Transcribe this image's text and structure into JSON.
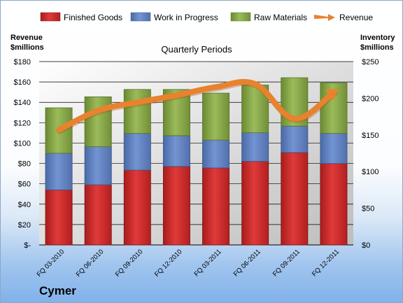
{
  "company": "Cymer",
  "legend": {
    "finished_goods": "Finished Goods",
    "wip": "Work in Progress",
    "raw": "Raw Materials",
    "revenue": "Revenue"
  },
  "colors": {
    "finished_goods": "#d42a2a",
    "wip": "#5b7dc0",
    "raw": "#7fa240",
    "revenue": "#e8822e"
  },
  "chart_data": {
    "type": "bar",
    "stacked": true,
    "title": "Quarterly Periods",
    "ylabel_left": "Revenue\n$millions",
    "ylabel_right": "Inventory\n$millions",
    "categories": [
      "FQ 03-2010",
      "FQ 06-2010",
      "FQ 09-2010",
      "FQ 12-2010",
      "FQ 03-2011",
      "FQ 06-2011",
      "FQ 09-2011",
      "FQ 12-2011"
    ],
    "left_axis": {
      "min": 0,
      "max": 180,
      "step": 20,
      "ticks": [
        "$-",
        "$20",
        "$40",
        "$60",
        "$80",
        "$100",
        "$120",
        "$140",
        "$160",
        "$180"
      ]
    },
    "right_axis": {
      "min": 0,
      "max": 250,
      "step": 50,
      "ticks": [
        "$0",
        "$50",
        "$100",
        "$150",
        "$200",
        "$250"
      ]
    },
    "series": [
      {
        "name": "Finished Goods",
        "axis": "right",
        "values": [
          75,
          82,
          102,
          107,
          105,
          114,
          126,
          111
        ]
      },
      {
        "name": "Work in Progress",
        "axis": "right",
        "values": [
          50,
          52,
          50,
          42,
          38,
          39,
          36,
          41
        ]
      },
      {
        "name": "Raw Materials",
        "axis": "right",
        "values": [
          62,
          68,
          60,
          63,
          64,
          65,
          66,
          69
        ]
      },
      {
        "name": "Revenue",
        "type": "line",
        "axis": "left",
        "values": [
          113,
          132,
          140,
          147,
          155,
          158,
          124,
          150
        ]
      }
    ],
    "grid": true,
    "legend_position": "top"
  }
}
